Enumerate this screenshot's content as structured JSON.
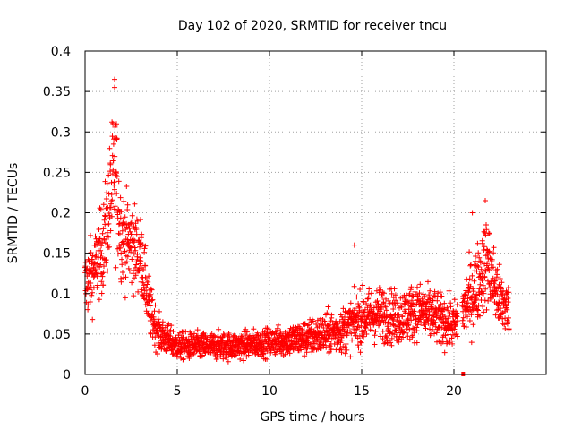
{
  "chart_data": {
    "type": "scatter",
    "title": "Day 102 of 2020, SRMTID for receiver tncu",
    "xlabel": "GPS time / hours",
    "ylabel": "SRMTID / TECUs",
    "xlim": [
      0,
      25
    ],
    "ylim": [
      0,
      0.4
    ],
    "xticks": [
      0,
      5,
      10,
      15,
      20
    ],
    "xtick_labels": [
      "0",
      "5",
      "10",
      "15",
      "20"
    ],
    "yticks": [
      0,
      0.05,
      0.1,
      0.15,
      0.2,
      0.25,
      0.3,
      0.35,
      0.4
    ],
    "ytick_labels": [
      "0",
      "0.05",
      "0.1",
      "0.15",
      "0.2",
      "0.25",
      "0.3",
      "0.35",
      "0.4"
    ],
    "grid": true,
    "marker": "+",
    "color": "#ff0000",
    "series": [
      {
        "name": "SRMTID",
        "description_profile_hours": [
          0,
          0.5,
          1.0,
          1.6,
          2.0,
          2.5,
          3.0,
          3.5,
          4.0,
          5.0,
          6.0,
          8.0,
          10.0,
          12.0,
          14.0,
          15.0,
          16.0,
          17.0,
          18.0,
          19.0,
          20.0,
          21.0,
          21.8,
          22.5,
          23.0
        ],
        "description_profile_values": [
          0.11,
          0.13,
          0.16,
          0.25,
          0.17,
          0.16,
          0.15,
          0.08,
          0.05,
          0.035,
          0.035,
          0.035,
          0.04,
          0.045,
          0.055,
          0.07,
          0.075,
          0.07,
          0.08,
          0.07,
          0.06,
          0.1,
          0.14,
          0.09,
          0.08
        ],
        "spread": [
          0.04,
          0.04,
          0.05,
          0.08,
          0.05,
          0.05,
          0.04,
          0.03,
          0.02,
          0.015,
          0.015,
          0.015,
          0.015,
          0.02,
          0.025,
          0.03,
          0.03,
          0.03,
          0.03,
          0.03,
          0.025,
          0.04,
          0.05,
          0.035,
          0.03
        ],
        "num_points": 2300,
        "notable_points": [
          {
            "x": 1.6,
            "y": 0.365
          },
          {
            "x": 1.6,
            "y": 0.355
          },
          {
            "x": 1.7,
            "y": 0.31
          },
          {
            "x": 14.6,
            "y": 0.16
          },
          {
            "x": 21.7,
            "y": 0.215
          },
          {
            "x": 21.0,
            "y": 0.2
          }
        ]
      }
    ],
    "gap_marker": {
      "x": 20.5,
      "y": 0.0
    }
  }
}
